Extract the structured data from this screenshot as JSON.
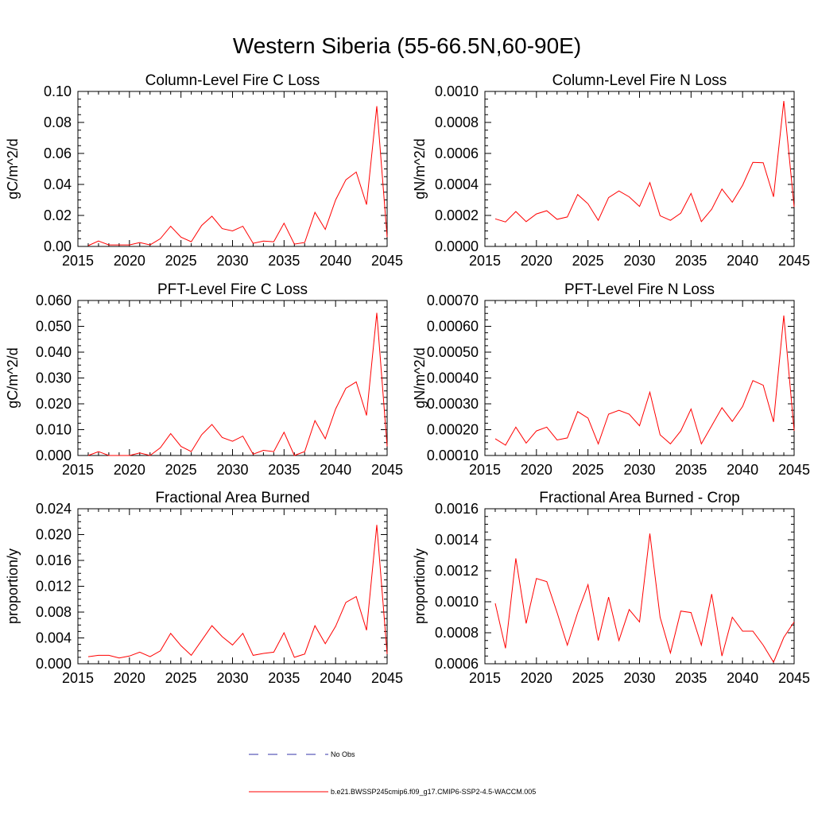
{
  "figure": {
    "title": "Western Siberia (55-66.5N,60-90E)"
  },
  "legend": {
    "obs_label": "No Obs",
    "obs_color": "#3333aa",
    "model_label": "b.e21.BWSSP245cmip6.f09_g17.CMIP6-SSP2-4.5-WACCM.005",
    "model_color": "#ff0000"
  },
  "chart_data": [
    {
      "type": "line",
      "title": "Column-Level Fire C Loss",
      "xlabel": "",
      "ylabel": "gC/m^2/d",
      "xlim": [
        2015,
        2045
      ],
      "ylim": [
        0.0,
        0.1
      ],
      "xticks": [
        2015,
        2020,
        2025,
        2030,
        2035,
        2040,
        2045
      ],
      "yticks": [
        0.0,
        0.02,
        0.04,
        0.06,
        0.08,
        0.1
      ],
      "ytick_labels": [
        "0.00",
        "0.02",
        "0.04",
        "0.06",
        "0.08",
        "0.10"
      ],
      "x": [
        2016,
        2017,
        2018,
        2019,
        2020,
        2021,
        2022,
        2023,
        2024,
        2025,
        2026,
        2027,
        2028,
        2029,
        2030,
        2031,
        2032,
        2033,
        2034,
        2035,
        2036,
        2037,
        2038,
        2039,
        2040,
        2041,
        2042,
        2043,
        2044,
        2045
      ],
      "series": [
        {
          "name": "b.e21.BWSSP245cmip6.f09_g17.CMIP6-SSP2-4.5-WACCM.005",
          "values": [
            0.0005,
            0.0035,
            0.001,
            0.001,
            0.001,
            0.0025,
            0.001,
            0.005,
            0.013,
            0.006,
            0.003,
            0.0135,
            0.0195,
            0.0115,
            0.01,
            0.013,
            0.002,
            0.0035,
            0.003,
            0.015,
            0.0015,
            0.0025,
            0.022,
            0.011,
            0.03,
            0.043,
            0.048,
            0.027,
            0.0905,
            0.006
          ]
        }
      ]
    },
    {
      "type": "line",
      "title": "Column-Level Fire N Loss",
      "xlabel": "",
      "ylabel": "gN/m^2/d",
      "xlim": [
        2015,
        2045
      ],
      "ylim": [
        0.0,
        0.001
      ],
      "xticks": [
        2015,
        2020,
        2025,
        2030,
        2035,
        2040,
        2045
      ],
      "yticks": [
        0.0,
        0.0002,
        0.0004,
        0.0006,
        0.0008,
        0.001
      ],
      "ytick_labels": [
        "0.0000",
        "0.0002",
        "0.0004",
        "0.0006",
        "0.0008",
        "0.0010"
      ],
      "x": [
        2016,
        2017,
        2018,
        2019,
        2020,
        2021,
        2022,
        2023,
        2024,
        2025,
        2026,
        2027,
        2028,
        2029,
        2030,
        2031,
        2032,
        2033,
        2034,
        2035,
        2036,
        2037,
        2038,
        2039,
        2040,
        2041,
        2042,
        2043,
        2044,
        2045
      ],
      "series": [
        {
          "name": "b.e21.BWSSP245cmip6.f09_g17.CMIP6-SSP2-4.5-WACCM.005",
          "values": [
            0.000178,
            0.000158,
            0.000225,
            0.00016,
            0.00021,
            0.00023,
            0.000175,
            0.00019,
            0.000335,
            0.000275,
            0.000168,
            0.000315,
            0.000358,
            0.00032,
            0.000258,
            0.000412,
            0.000198,
            0.000168,
            0.000215,
            0.000342,
            0.00016,
            0.00024,
            0.00037,
            0.000285,
            0.000395,
            0.000542,
            0.00054,
            0.00032,
            0.000938,
            0.000255
          ]
        }
      ]
    },
    {
      "type": "line",
      "title": "PFT-Level Fire C Loss",
      "xlabel": "",
      "ylabel": "gC/m^2/d",
      "xlim": [
        2015,
        2045
      ],
      "ylim": [
        0.0,
        0.06
      ],
      "xticks": [
        2015,
        2020,
        2025,
        2030,
        2035,
        2040,
        2045
      ],
      "yticks": [
        0.0,
        0.01,
        0.02,
        0.03,
        0.04,
        0.05,
        0.06
      ],
      "ytick_labels": [
        "0.000",
        "0.010",
        "0.020",
        "0.030",
        "0.040",
        "0.050",
        "0.060"
      ],
      "x": [
        2016,
        2017,
        2018,
        2019,
        2020,
        2021,
        2022,
        2023,
        2024,
        2025,
        2026,
        2027,
        2028,
        2029,
        2030,
        2031,
        2032,
        2033,
        2034,
        2035,
        2036,
        2037,
        2038,
        2039,
        2040,
        2041,
        2042,
        2043,
        2044,
        2045
      ],
      "series": [
        {
          "name": "b.e21.BWSSP245cmip6.f09_g17.CMIP6-SSP2-4.5-WACCM.005",
          "values": [
            0.0,
            0.0015,
            0.0,
            0.0,
            0.0,
            0.001,
            0.0,
            0.003,
            0.0085,
            0.0035,
            0.0015,
            0.008,
            0.012,
            0.007,
            0.0055,
            0.0075,
            0.0005,
            0.002,
            0.0015,
            0.009,
            0.0,
            0.0015,
            0.0135,
            0.0065,
            0.018,
            0.026,
            0.0285,
            0.0155,
            0.0552,
            0.0035
          ]
        }
      ]
    },
    {
      "type": "line",
      "title": "PFT-Level Fire N Loss",
      "xlabel": "",
      "ylabel": "gN/m^2/d",
      "xlim": [
        2015,
        2045
      ],
      "ylim": [
        0.0001,
        0.0007
      ],
      "xticks": [
        2015,
        2020,
        2025,
        2030,
        2035,
        2040,
        2045
      ],
      "yticks": [
        0.0001,
        0.0002,
        0.0003,
        0.0004,
        0.0005,
        0.0006,
        0.0007
      ],
      "ytick_labels": [
        "0.00010",
        "0.00020",
        "0.00030",
        "0.00040",
        "0.00050",
        "0.00060",
        "0.00070"
      ],
      "x": [
        2016,
        2017,
        2018,
        2019,
        2020,
        2021,
        2022,
        2023,
        2024,
        2025,
        2026,
        2027,
        2028,
        2029,
        2030,
        2031,
        2032,
        2033,
        2034,
        2035,
        2036,
        2037,
        2038,
        2039,
        2040,
        2041,
        2042,
        2043,
        2044,
        2045
      ],
      "series": [
        {
          "name": "b.e21.BWSSP245cmip6.f09_g17.CMIP6-SSP2-4.5-WACCM.005",
          "values": [
            0.000165,
            0.00014,
            0.00021,
            0.000148,
            0.000195,
            0.00021,
            0.00016,
            0.000168,
            0.00027,
            0.000245,
            0.000145,
            0.00026,
            0.000275,
            0.00026,
            0.000215,
            0.000345,
            0.00018,
            0.000145,
            0.000195,
            0.00028,
            0.000145,
            0.000215,
            0.000285,
            0.000232,
            0.00029,
            0.00039,
            0.000372,
            0.00023,
            0.000642,
            0.000195
          ]
        }
      ]
    },
    {
      "type": "line",
      "title": "Fractional Area Burned",
      "xlabel": "",
      "ylabel": "proportion/y",
      "xlim": [
        2015,
        2045
      ],
      "ylim": [
        0.0,
        0.024
      ],
      "xticks": [
        2015,
        2020,
        2025,
        2030,
        2035,
        2040,
        2045
      ],
      "yticks": [
        0.0,
        0.004,
        0.008,
        0.012,
        0.016,
        0.02,
        0.024
      ],
      "ytick_labels": [
        "0.000",
        "0.004",
        "0.008",
        "0.012",
        "0.016",
        "0.020",
        "0.024"
      ],
      "x": [
        2016,
        2017,
        2018,
        2019,
        2020,
        2021,
        2022,
        2023,
        2024,
        2025,
        2026,
        2027,
        2028,
        2029,
        2030,
        2031,
        2032,
        2033,
        2034,
        2035,
        2036,
        2037,
        2038,
        2039,
        2040,
        2041,
        2042,
        2043,
        2044,
        2045
      ],
      "series": [
        {
          "name": "b.e21.BWSSP245cmip6.f09_g17.CMIP6-SSP2-4.5-WACCM.005",
          "values": [
            0.0011,
            0.0013,
            0.0013,
            0.0009,
            0.0012,
            0.0018,
            0.0011,
            0.002,
            0.0047,
            0.0028,
            0.0013,
            0.0036,
            0.0059,
            0.0042,
            0.0029,
            0.0047,
            0.0013,
            0.0016,
            0.0018,
            0.0048,
            0.001,
            0.0015,
            0.0059,
            0.0031,
            0.0058,
            0.0095,
            0.0104,
            0.0052,
            0.0215,
            0.0015
          ]
        }
      ]
    },
    {
      "type": "line",
      "title": "Fractional Area Burned - Crop",
      "xlabel": "",
      "ylabel": "proportion/y",
      "xlim": [
        2015,
        2045
      ],
      "ylim": [
        0.0006,
        0.0016
      ],
      "xticks": [
        2015,
        2020,
        2025,
        2030,
        2035,
        2040,
        2045
      ],
      "yticks": [
        0.0006,
        0.0008,
        0.001,
        0.0012,
        0.0014,
        0.0016
      ],
      "ytick_labels": [
        "0.0006",
        "0.0008",
        "0.0010",
        "0.0012",
        "0.0014",
        "0.0016"
      ],
      "x": [
        2016,
        2017,
        2018,
        2019,
        2020,
        2021,
        2022,
        2023,
        2024,
        2025,
        2026,
        2027,
        2028,
        2029,
        2030,
        2031,
        2032,
        2033,
        2034,
        2035,
        2036,
        2037,
        2038,
        2039,
        2040,
        2041,
        2042,
        2043,
        2044,
        2045
      ],
      "series": [
        {
          "name": "b.e21.BWSSP245cmip6.f09_g17.CMIP6-SSP2-4.5-WACCM.005",
          "values": [
            0.00099,
            0.0007,
            0.00128,
            0.00086,
            0.00115,
            0.00113,
            0.00093,
            0.00072,
            0.00093,
            0.00111,
            0.00075,
            0.00103,
            0.00075,
            0.00095,
            0.00087,
            0.00144,
            0.0009,
            0.00067,
            0.00094,
            0.00093,
            0.00072,
            0.00105,
            0.00065,
            0.0009,
            0.00081,
            0.00081,
            0.00072,
            0.00061,
            0.00077,
            0.00087
          ]
        }
      ]
    }
  ]
}
